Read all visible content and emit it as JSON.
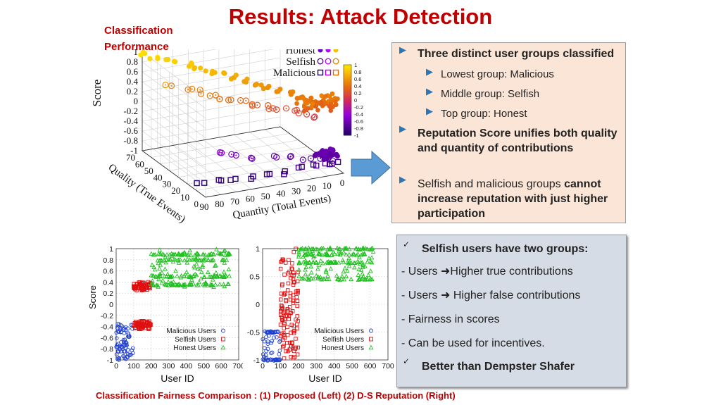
{
  "slide": {
    "title": "Results: Attack Detection",
    "perf_label_line1": "Classification",
    "perf_label_line2": "Performance",
    "caption": "Classification Fairness Comparison :  (1) Proposed (Left)  (2)  D-S Reputation (Right)"
  },
  "box_a": {
    "b1": "Three distinct user groups classified",
    "b1a": "Lowest group: Malicious",
    "b1b": "Middle group: Selfish",
    "b1c": "Top group: Honest",
    "b2": "Reputation Score unifies both quality and quantity of contributions",
    "b3_plain": "Selfish and malicious groups ",
    "b3_bold": "cannot increase reputation with just higher participation"
  },
  "box_b": {
    "heading": "Selfish users have two groups:",
    "l1_pre": "- Users ",
    "l1_post": "Higher true contributions",
    "l2_pre": "- Users ",
    "l2_post": " Higher false contributions",
    "l3": "-  Fairness in scores",
    "l4": "-  Can be used for incentives.",
    "last": "Better than Dempster Shafer"
  },
  "icons": {
    "bullet": "triangle-right-icon",
    "check": "checkmark-icon",
    "arrow": "right-arrow-icon"
  },
  "chart_data": [
    {
      "type": "scatter",
      "zlabel": "Score",
      "xlabel": "Quantity (Total Events)",
      "ylabel": "Quality (True Events)",
      "x_ticks": [
        "90",
        "80",
        "70",
        "60",
        "50",
        "40",
        "30",
        "20",
        "10",
        "0"
      ],
      "y_ticks": [
        "70",
        "60",
        "50",
        "40",
        "30",
        "20",
        "10",
        "0"
      ],
      "z_ticks": [
        "1",
        "0.8",
        "0.6",
        "0.4",
        "0.2",
        "0",
        "-0.2",
        "-0.4",
        "-0.6",
        "-0.8",
        "-1"
      ],
      "colorbar_ticks": [
        "1",
        "0.8",
        "0.6",
        "0.4",
        "0.2",
        "0",
        "-0.2",
        "-0.4",
        "-0.6",
        "-0.8",
        "-1"
      ],
      "zlim": [
        -1,
        1
      ],
      "legend": [
        "Honest",
        "Selfish",
        "Malicious"
      ],
      "legend_position": "top-right",
      "groups": [
        {
          "name": "Honest",
          "points": [
            [
              90,
              70,
              0.95
            ],
            [
              85,
              65,
              0.93
            ],
            [
              80,
              62,
              0.9
            ],
            [
              75,
              58,
              0.88
            ],
            [
              70,
              55,
              0.85
            ],
            [
              65,
              50,
              0.82
            ],
            [
              60,
              45,
              0.78
            ],
            [
              55,
              42,
              0.74
            ],
            [
              50,
              38,
              0.7
            ],
            [
              45,
              33,
              0.66
            ],
            [
              40,
              30,
              0.62
            ],
            [
              35,
              26,
              0.58
            ],
            [
              30,
              22,
              0.54
            ],
            [
              25,
              18,
              0.5
            ],
            [
              20,
              14,
              0.46
            ],
            [
              15,
              11,
              0.42
            ],
            [
              10,
              8,
              0.38
            ],
            [
              5,
              4,
              0.34
            ]
          ]
        },
        {
          "name": "Selfish",
          "points": [
            [
              85,
              50,
              0.55
            ],
            [
              75,
              45,
              0.48
            ],
            [
              70,
              40,
              0.5
            ],
            [
              65,
              35,
              0.45
            ],
            [
              60,
              32,
              0.42
            ],
            [
              55,
              30,
              0.38
            ],
            [
              50,
              28,
              0.35
            ],
            [
              45,
              25,
              0.3
            ],
            [
              40,
              22,
              0.28
            ],
            [
              35,
              20,
              0.25
            ],
            [
              30,
              18,
              0.22
            ],
            [
              25,
              15,
              0.2
            ],
            [
              20,
              12,
              0.15
            ],
            [
              15,
              8,
              0.1
            ],
            [
              70,
              20,
              -0.5
            ],
            [
              60,
              18,
              -0.55
            ],
            [
              50,
              15,
              -0.6
            ],
            [
              40,
              12,
              -0.62
            ],
            [
              30,
              10,
              -0.65
            ],
            [
              20,
              8,
              -0.68
            ],
            [
              10,
              5,
              -0.7
            ],
            [
              5,
              3,
              -0.72
            ]
          ]
        },
        {
          "name": "Malicious",
          "points": [
            [
              85,
              15,
              -0.95
            ],
            [
              75,
              12,
              -0.92
            ],
            [
              65,
              10,
              -0.9
            ],
            [
              55,
              8,
              -0.88
            ],
            [
              45,
              6,
              -0.86
            ],
            [
              35,
              5,
              -0.84
            ],
            [
              25,
              4,
              -0.82
            ],
            [
              15,
              3,
              -0.8
            ],
            [
              10,
              2,
              -0.78
            ],
            [
              5,
              1,
              -0.76
            ]
          ]
        }
      ]
    },
    {
      "type": "scatter",
      "ylabel": "Score",
      "xlabel": "User ID",
      "xlim": [
        0,
        700
      ],
      "ylim": [
        -1,
        1
      ],
      "x_ticks": [
        "0",
        "100",
        "200",
        "300",
        "400",
        "500",
        "600",
        "700"
      ],
      "y_ticks": [
        "1",
        "0.8",
        "0.6",
        "0.4",
        "0.2",
        "0",
        "-0.2",
        "-0.4",
        "-0.6",
        "-0.8",
        "-1"
      ],
      "legend": [
        "Malicious Users",
        "Selfish Users",
        "Honest Users"
      ],
      "legend_position": "bottom-right",
      "series": [
        {
          "name": "Malicious Users",
          "x_range": [
            0,
            100
          ],
          "y_range": [
            -1,
            -0.35
          ]
        },
        {
          "name": "Selfish Users",
          "x_range": [
            100,
            200
          ],
          "y_range": [
            -0.45,
            -0.3
          ]
        },
        {
          "name": "Selfish Users",
          "x_range": [
            100,
            200
          ],
          "y_range": [
            0.25,
            0.4
          ]
        },
        {
          "name": "Honest Users",
          "x_range": [
            200,
            650
          ],
          "y_range": [
            0.3,
            1
          ]
        }
      ]
    },
    {
      "type": "scatter",
      "xlabel": "User ID",
      "xlim": [
        0,
        700
      ],
      "ylim": [
        -1,
        1
      ],
      "x_ticks": [
        "0",
        "100",
        "200",
        "300",
        "400",
        "500",
        "600",
        "700"
      ],
      "y_ticks": [
        "1",
        "0.5",
        "0",
        "-0.5",
        "-1"
      ],
      "legend": [
        "Malicious Users",
        "Selfish Users",
        "Honest Users"
      ],
      "legend_position": "bottom-right",
      "series": [
        {
          "name": "Malicious Users",
          "x_range": [
            0,
            100
          ],
          "y_range": [
            -1,
            -0.45
          ]
        },
        {
          "name": "Selfish Users",
          "x_range": [
            100,
            200
          ],
          "y_range": [
            -1,
            1
          ]
        },
        {
          "name": "Honest Users",
          "x_range": [
            200,
            620
          ],
          "y_range": [
            0.45,
            1
          ]
        }
      ]
    }
  ]
}
